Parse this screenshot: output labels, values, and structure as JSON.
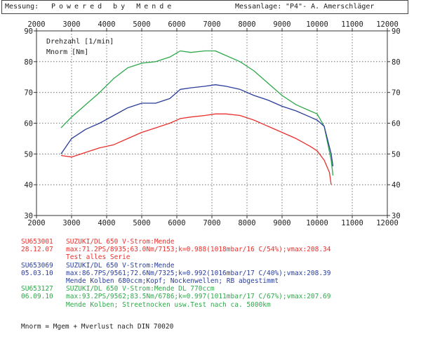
{
  "header": {
    "messung_label": "Messung:",
    "messung_value": "Powered by Mende",
    "anlage_label": "Messanlage:",
    "anlage_value": "\"P4\"- A. Amerschläger"
  },
  "colors": {
    "red": "#e8302c",
    "blue": "#2a3d9a",
    "green": "#2ea84a"
  },
  "chart_data": {
    "type": "line",
    "x_ticks": [
      "2000",
      "3000",
      "4000",
      "5000",
      "6000",
      "7000",
      "8000",
      "9000",
      "10000",
      "11000",
      "12000"
    ],
    "y_ticks": [
      "30",
      "40",
      "50",
      "60",
      "70",
      "80",
      "90"
    ],
    "xlim": [
      2000,
      12000
    ],
    "ylim": [
      30,
      90
    ],
    "grid": true,
    "labels": [
      "Drehzahl [1/min]",
      "Mnorm [Nm]"
    ],
    "series": [
      {
        "color": "#2ea84a",
        "x": [
          2700,
          3000,
          3400,
          3800,
          4200,
          4600,
          5000,
          5400,
          5800,
          6100,
          6400,
          6800,
          7100,
          7400,
          7800,
          8200,
          8600,
          9000,
          9400,
          9800,
          10000,
          10200,
          10400,
          10450
        ],
        "y": [
          58.5,
          62,
          66,
          70,
          74.5,
          78,
          79.5,
          80,
          81.5,
          83.5,
          83,
          83.5,
          83.5,
          82,
          80,
          77,
          73,
          69,
          66,
          64,
          63,
          59,
          48,
          43
        ]
      },
      {
        "color": "#2a3d9a",
        "x": [
          2700,
          3000,
          3400,
          3800,
          4200,
          4600,
          5000,
          5400,
          5800,
          6100,
          6400,
          6800,
          7100,
          7400,
          7800,
          8200,
          8600,
          9000,
          9400,
          9800,
          10000,
          10200,
          10400,
          10450
        ],
        "y": [
          50,
          55,
          58,
          60,
          62.5,
          65,
          66.5,
          66.5,
          68,
          71,
          71.5,
          72,
          72.5,
          72,
          71,
          69,
          67.5,
          65.5,
          64,
          62,
          61,
          59,
          50,
          46
        ]
      },
      {
        "color": "#e8302c",
        "x": [
          2700,
          3000,
          3400,
          3800,
          4200,
          4600,
          5000,
          5400,
          5800,
          6100,
          6400,
          6800,
          7100,
          7400,
          7800,
          8200,
          8600,
          9000,
          9400,
          9800,
          10000,
          10200,
          10350,
          10400
        ],
        "y": [
          49.5,
          49,
          50.5,
          52,
          53,
          55,
          57,
          58.5,
          60,
          61.5,
          62,
          62.5,
          63,
          63,
          62.5,
          61,
          59,
          57,
          55,
          52.5,
          51,
          48,
          44,
          40
        ]
      }
    ]
  },
  "legend": [
    {
      "color": "red",
      "id": "SU653001",
      "text": "SUZUKI/DL 650 V-Strom:Mende"
    },
    {
      "color": "red",
      "id": "28.12.07",
      "text": "max:71.2PS/8935;63.0Nm/7153;k=0.988(1018mbar/16 C/54%);vmax:208.34"
    },
    {
      "color": "red",
      "id": "",
      "text": "Test alles Serie"
    },
    {
      "color": "blue",
      "id": "SU653069",
      "text": "SUZUKI/DL 650 V-Strom:Mende"
    },
    {
      "color": "blue",
      "id": "05.03.10",
      "text": "max:86.7PS/9561;72.6Nm/7325;k=0.992(1016mbar/17 C/40%);vmax:208.39"
    },
    {
      "color": "blue",
      "id": "",
      "text": "Mende Kolben 680ccm;Kopf; Nockenwellen; RB abgestimmt"
    },
    {
      "color": "green",
      "id": "SU653127",
      "text": "SUZUKI/DL 650 V-Strom:Mende DL 770ccm"
    },
    {
      "color": "green",
      "id": "06.09.10",
      "text": "max:93.2PS/9562;83.5Nm/6786;k=0.997(1011mbar/17 C/67%);vmax:207.69"
    },
    {
      "color": "green",
      "id": "",
      "text": "Mende Kolben; Streetnocken usw.Test nach ca. 5000km"
    }
  ],
  "footer": {
    "formula": "Mnorm = Mgem + Mverlust nach DIN 70020"
  }
}
